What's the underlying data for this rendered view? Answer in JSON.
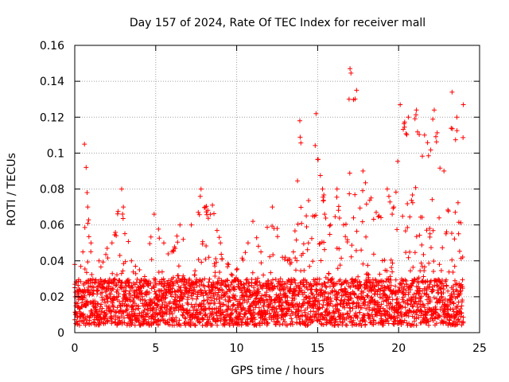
{
  "chart_data": {
    "type": "scatter",
    "title": "Day 157 of 2024, Rate Of TEC Index for receiver mall",
    "xlabel": "GPS time / hours",
    "ylabel": "ROTI / TECUs",
    "xlim": [
      0,
      25
    ],
    "ylim": [
      0,
      0.16
    ],
    "xticks": [
      0,
      5,
      10,
      15,
      20,
      25
    ],
    "xtick_labels": [
      "0",
      "5",
      "10",
      "15",
      "20",
      "25"
    ],
    "yticks": [
      0,
      0.02,
      0.04,
      0.06,
      0.08,
      0.1,
      0.12,
      0.14,
      0.16
    ],
    "ytick_labels": [
      "0",
      "0.02",
      "0.04",
      "0.06",
      "0.08",
      "0.1",
      "0.12",
      "0.14",
      "0.16"
    ],
    "grid": true,
    "marker": "+",
    "marker_color": "#ff0000",
    "data_range": [
      0,
      24
    ],
    "baseline_band": [
      0.004,
      0.03
    ],
    "envelope": [
      {
        "x": 0.0,
        "y": 0.038
      },
      {
        "x": 0.5,
        "y": 0.045
      },
      {
        "x": 0.6,
        "y": 0.105
      },
      {
        "x": 0.7,
        "y": 0.092
      },
      {
        "x": 0.8,
        "y": 0.07
      },
      {
        "x": 1.0,
        "y": 0.05
      },
      {
        "x": 1.5,
        "y": 0.04
      },
      {
        "x": 2.0,
        "y": 0.047
      },
      {
        "x": 2.3,
        "y": 0.05
      },
      {
        "x": 2.9,
        "y": 0.08
      },
      {
        "x": 3.0,
        "y": 0.07
      },
      {
        "x": 3.5,
        "y": 0.04
      },
      {
        "x": 4.0,
        "y": 0.035
      },
      {
        "x": 4.9,
        "y": 0.066
      },
      {
        "x": 5.5,
        "y": 0.05
      },
      {
        "x": 6.0,
        "y": 0.045
      },
      {
        "x": 6.5,
        "y": 0.06
      },
      {
        "x": 7.2,
        "y": 0.06
      },
      {
        "x": 7.8,
        "y": 0.08
      },
      {
        "x": 8.5,
        "y": 0.071
      },
      {
        "x": 9.0,
        "y": 0.05
      },
      {
        "x": 9.5,
        "y": 0.038
      },
      {
        "x": 10.0,
        "y": 0.035
      },
      {
        "x": 10.7,
        "y": 0.05
      },
      {
        "x": 11.0,
        "y": 0.062
      },
      {
        "x": 11.5,
        "y": 0.045
      },
      {
        "x": 12.2,
        "y": 0.07
      },
      {
        "x": 12.5,
        "y": 0.058
      },
      {
        "x": 13.0,
        "y": 0.042
      },
      {
        "x": 13.5,
        "y": 0.045
      },
      {
        "x": 13.9,
        "y": 0.118
      },
      {
        "x": 14.3,
        "y": 0.065
      },
      {
        "x": 14.9,
        "y": 0.122
      },
      {
        "x": 15.3,
        "y": 0.08
      },
      {
        "x": 15.8,
        "y": 0.06
      },
      {
        "x": 16.2,
        "y": 0.08
      },
      {
        "x": 16.6,
        "y": 0.06
      },
      {
        "x": 17.0,
        "y": 0.147
      },
      {
        "x": 17.4,
        "y": 0.135
      },
      {
        "x": 17.8,
        "y": 0.09
      },
      {
        "x": 18.3,
        "y": 0.075
      },
      {
        "x": 18.8,
        "y": 0.065
      },
      {
        "x": 19.3,
        "y": 0.08
      },
      {
        "x": 19.7,
        "y": 0.07
      },
      {
        "x": 20.1,
        "y": 0.127
      },
      {
        "x": 20.6,
        "y": 0.12
      },
      {
        "x": 21.1,
        "y": 0.124
      },
      {
        "x": 21.6,
        "y": 0.11
      },
      {
        "x": 22.2,
        "y": 0.124
      },
      {
        "x": 22.8,
        "y": 0.09
      },
      {
        "x": 23.3,
        "y": 0.134
      },
      {
        "x": 23.6,
        "y": 0.12
      },
      {
        "x": 24.0,
        "y": 0.127
      }
    ]
  }
}
